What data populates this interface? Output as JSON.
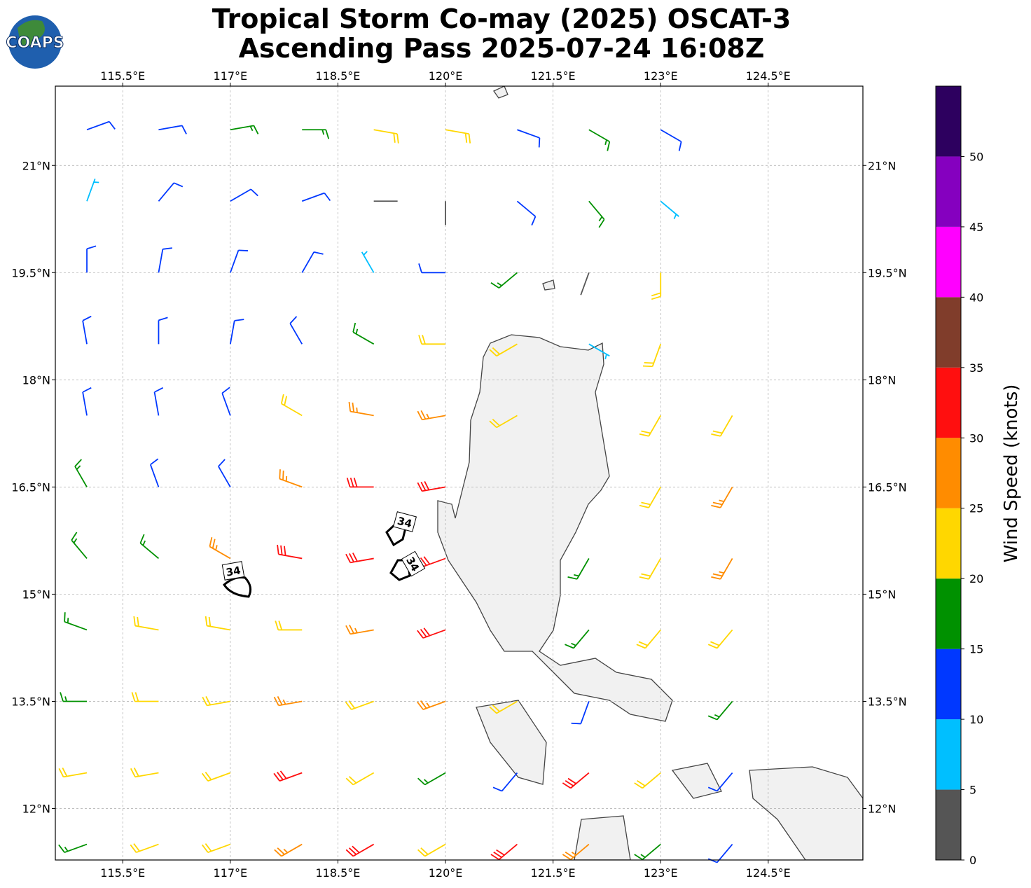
{
  "title": [
    "Tropical Storm Co-may (2025) OSCAT-3",
    "Ascending Pass 2025-07-24 16:08Z"
  ],
  "logo": "COAPS",
  "map": {
    "xlim": [
      114.56,
      125.82
    ],
    "ylim": [
      11.28,
      22.11
    ],
    "grid": true,
    "xticks": [
      {
        "value": 115.5,
        "label": "115.5°E"
      },
      {
        "value": 117,
        "label": "117°E"
      },
      {
        "value": 118.5,
        "label": "118.5°E"
      },
      {
        "value": 120,
        "label": "120°E"
      },
      {
        "value": 121.5,
        "label": "121.5°E"
      },
      {
        "value": 123,
        "label": "123°E"
      },
      {
        "value": 124.5,
        "label": "124.5°E"
      }
    ],
    "yticks": [
      {
        "value": 21,
        "label": "21°N"
      },
      {
        "value": 19.5,
        "label": "19.5°N"
      },
      {
        "value": 18,
        "label": "18°N"
      },
      {
        "value": 16.5,
        "label": "16.5°N"
      },
      {
        "value": 15,
        "label": "15°N"
      },
      {
        "value": 13.5,
        "label": "13.5°N"
      },
      {
        "value": 12,
        "label": "12°N"
      }
    ],
    "contour_labels": [
      "34",
      "34",
      "34"
    ],
    "barbs": {
      "lons": [
        115,
        116,
        117,
        118,
        119,
        120,
        121,
        122,
        123,
        124
      ],
      "lats": [
        21.5,
        20.5,
        19.5,
        18.5,
        17.5,
        16.5,
        15.5,
        14.5,
        13.5,
        12.5,
        11.5
      ],
      "speed": [
        [
          10,
          12,
          15,
          17,
          20,
          22,
          14,
          18,
          12,
          null
        ],
        [
          9,
          12,
          14,
          10,
          4,
          3,
          12,
          17,
          8,
          null
        ],
        [
          12,
          12,
          11,
          10,
          8,
          14,
          18,
          3,
          22,
          null
        ],
        [
          13,
          13,
          12,
          13,
          16,
          20,
          22,
          8,
          22,
          null
        ],
        [
          13,
          12,
          14,
          22,
          27,
          28,
          20,
          null,
          22,
          24
        ],
        [
          18,
          13,
          12,
          25,
          31,
          32,
          null,
          null,
          23,
          26
        ],
        [
          17,
          18,
          28,
          33,
          30,
          33,
          null,
          18,
          24,
          27
        ],
        [
          17,
          20,
          24,
          24,
          28,
          33,
          null,
          18,
          20,
          22
        ],
        [
          17,
          22,
          24,
          25,
          22,
          28,
          22,
          12,
          null,
          18
        ],
        [
          20,
          23,
          22,
          30,
          22,
          18,
          12,
          30,
          24,
          12
        ],
        [
          18,
          22,
          24,
          28,
          30,
          24,
          31,
          28,
          18,
          12
        ]
      ],
      "direction": [
        [
          70,
          80,
          80,
          90,
          100,
          100,
          110,
          120,
          120,
          null
        ],
        [
          20,
          40,
          60,
          70,
          90,
          180,
          130,
          140,
          130,
          null
        ],
        [
          360,
          10,
          20,
          30,
          330,
          270,
          230,
          200,
          180,
          null
        ],
        [
          350,
          360,
          10,
          330,
          300,
          270,
          240,
          120,
          200,
          null
        ],
        [
          350,
          350,
          340,
          300,
          280,
          260,
          240,
          null,
          210,
          210
        ],
        [
          330,
          340,
          330,
          290,
          270,
          260,
          null,
          null,
          210,
          210
        ],
        [
          320,
          310,
          300,
          280,
          260,
          250,
          null,
          210,
          210,
          210
        ],
        [
          290,
          280,
          280,
          270,
          260,
          250,
          null,
          220,
          220,
          220
        ],
        [
          270,
          270,
          260,
          260,
          250,
          250,
          240,
          200,
          null,
          220
        ],
        [
          260,
          260,
          250,
          250,
          240,
          240,
          220,
          230,
          230,
          220
        ],
        [
          250,
          250,
          250,
          240,
          240,
          240,
          230,
          230,
          230,
          220
        ]
      ]
    }
  },
  "colorbar": {
    "label": "Wind Speed (knots)",
    "bounds": [
      0,
      5,
      10,
      15,
      20,
      25,
      30,
      35,
      40,
      45,
      50,
      55
    ],
    "colors": [
      "#555555",
      "#00bfff",
      "#0038ff",
      "#009100",
      "#ffd700",
      "#ff8c00",
      "#ff0f0f",
      "#803d2b",
      "#ff00ff",
      "#8500bf",
      "#2d005f"
    ],
    "ticks": [
      0,
      5,
      10,
      15,
      20,
      25,
      30,
      35,
      40,
      45,
      50
    ]
  }
}
